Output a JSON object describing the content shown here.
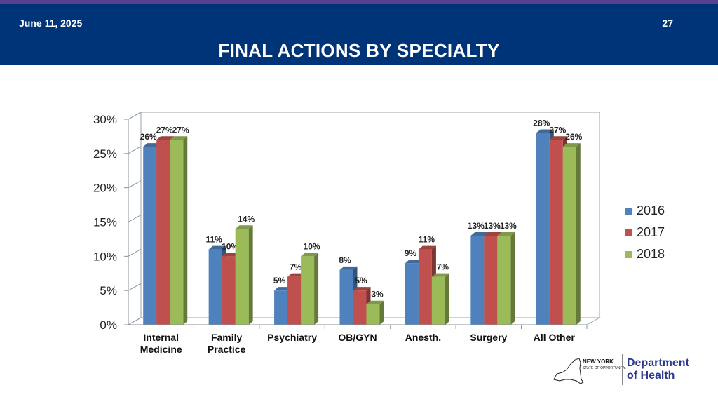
{
  "header": {
    "date": "June 11, 2025",
    "page_number": "27",
    "title": "FINAL ACTIONS BY SPECIALTY"
  },
  "logo": {
    "state_name": "NEW YORK",
    "state_tagline": "STATE OF OPPORTUNITY.",
    "dept_line1": "Department",
    "dept_line2": "of Health"
  },
  "chart_data": {
    "type": "bar",
    "style": "3d-clustered-column",
    "title": "",
    "xlabel": "",
    "ylabel": "",
    "categories": [
      "Internal\nMedicine",
      "Family\nPractice",
      "Psychiatry",
      "OB/GYN",
      "Anesth.",
      "Surgery",
      "All Other"
    ],
    "series": [
      {
        "name": "2016",
        "color": "#4f81bd",
        "values": [
          26,
          11,
          5,
          8,
          9,
          13,
          28
        ]
      },
      {
        "name": "2017",
        "color": "#c0504d",
        "values": [
          27,
          10,
          7,
          5,
          11,
          13,
          27
        ]
      },
      {
        "name": "2018",
        "color": "#9bbb59",
        "values": [
          27,
          14,
          10,
          3,
          7,
          13,
          26
        ]
      }
    ],
    "ylim": [
      0,
      30
    ],
    "yticks": [
      0,
      5,
      10,
      15,
      20,
      25,
      30
    ],
    "ytick_labels": [
      "0%",
      "5%",
      "10%",
      "15%",
      "20%",
      "25%",
      "30%"
    ],
    "value_format": "percent",
    "grid": false,
    "legend": "right"
  }
}
